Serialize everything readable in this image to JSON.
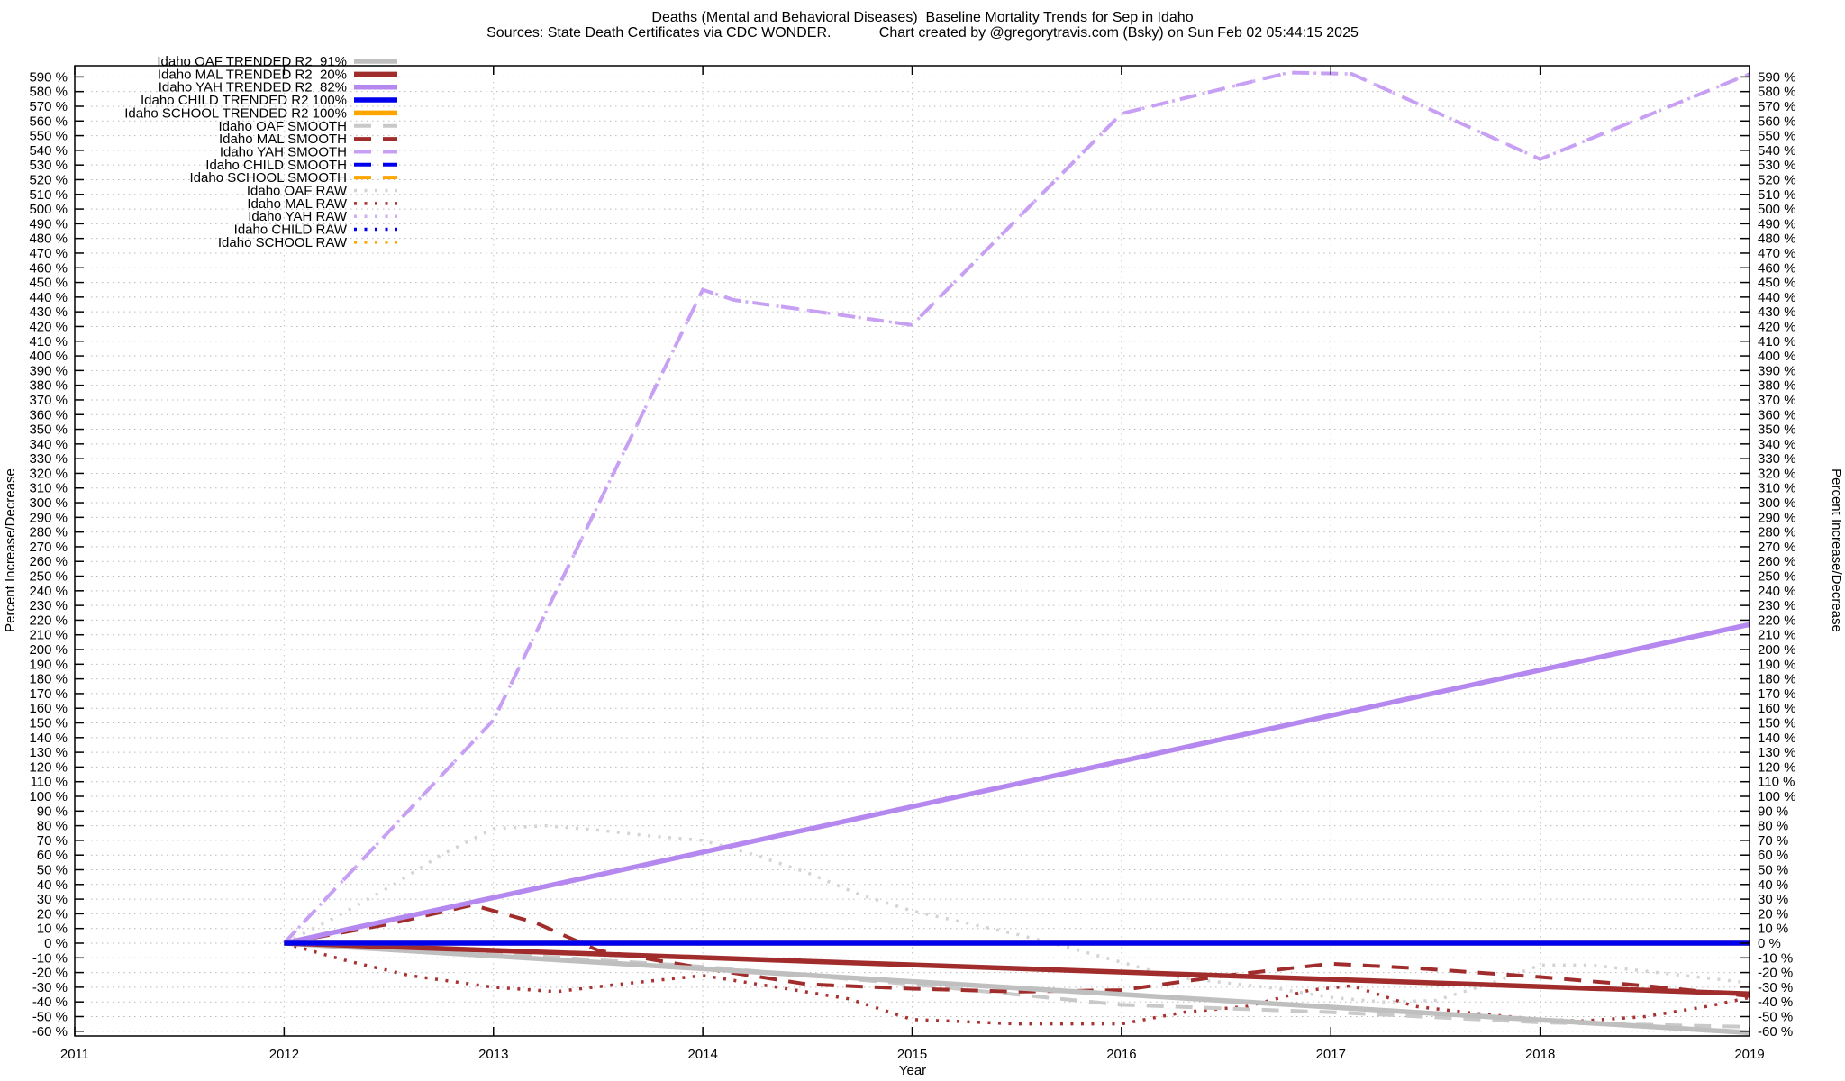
{
  "header": {
    "title": "Deaths (Mental and Behavioral Diseases)  Baseline Mortality Trends for Sep in Idaho",
    "subtitle": "Sources: State Death Certificates via CDC WONDER.            Chart created by @gregorytravis.com (Bsky) on Sun Feb 02 05:44:15 2025"
  },
  "chart_data": {
    "type": "line",
    "title": "Deaths (Mental and Behavioral Diseases)  Baseline Mortality Trends for Sep in Idaho",
    "xlabel": "Year",
    "ylabel_left": "Percent Increase/Decrease",
    "ylabel_right": "Percent Increase/Decrease",
    "x_range": [
      2011,
      2019
    ],
    "y_range": [
      -63.2,
      597.6
    ],
    "y_tick_min": -60,
    "y_tick_max": 590,
    "y_tick_step": 10,
    "y_tick_suffix": " %",
    "x_ticks": [
      2011,
      2012,
      2013,
      2014,
      2015,
      2016,
      2017,
      2018,
      2019
    ],
    "grid": true,
    "legend_position": "top-left-inside",
    "draw_order": [
      10,
      11,
      12,
      14,
      13,
      5,
      6,
      7,
      9,
      8,
      0,
      1,
      2,
      4,
      3
    ],
    "series": [
      {
        "label": "Idaho OAF TRENDED R2  91%",
        "r2_percent": 91,
        "color": "#bfbfbf",
        "style": "solid",
        "points": [
          [
            2012,
            0
          ],
          [
            2019,
            -61
          ]
        ]
      },
      {
        "label": "Idaho MAL TRENDED R2  20%",
        "r2_percent": 20,
        "color": "#a02c2c",
        "style": "solid",
        "points": [
          [
            2012,
            0
          ],
          [
            2019,
            -34.5
          ]
        ]
      },
      {
        "label": "Idaho YAH TRENDED R2  82%",
        "r2_percent": 82,
        "color": "#b588ef",
        "style": "solid",
        "points": [
          [
            2012,
            0
          ],
          [
            2019,
            217
          ]
        ]
      },
      {
        "label": "Idaho CHILD TRENDED R2 100%",
        "r2_percent": 100,
        "color": "#0000ee",
        "style": "solid",
        "points": [
          [
            2012,
            0
          ],
          [
            2019,
            0
          ]
        ]
      },
      {
        "label": "Idaho SCHOOL TRENDED R2 100%",
        "r2_percent": 100,
        "color": "#ffa500",
        "style": "solid",
        "points": [
          [
            2012,
            0
          ],
          [
            2019,
            0
          ]
        ]
      },
      {
        "label": "Idaho OAF SMOOTH",
        "color": "#c9c9c9",
        "style": "dashed",
        "points": [
          [
            2012,
            0
          ],
          [
            2013,
            -7
          ],
          [
            2014,
            -16
          ],
          [
            2015,
            -28
          ],
          [
            2016,
            -42
          ],
          [
            2017,
            -47
          ],
          [
            2018,
            -54
          ],
          [
            2019,
            -57
          ]
        ]
      },
      {
        "label": "Idaho MAL SMOOTH",
        "color": "#a02c2c",
        "style": "dashed",
        "points": [
          [
            2012,
            0
          ],
          [
            2012.5,
            13
          ],
          [
            2012.9,
            26
          ],
          [
            2013.2,
            14
          ],
          [
            2013.5,
            -5
          ],
          [
            2014,
            -17
          ],
          [
            2014.5,
            -28
          ],
          [
            2015,
            -31
          ],
          [
            2015.5,
            -33
          ],
          [
            2016,
            -32
          ],
          [
            2016.5,
            -22
          ],
          [
            2017,
            -14
          ],
          [
            2017.4,
            -17
          ],
          [
            2018,
            -23
          ],
          [
            2018.5,
            -29
          ],
          [
            2019,
            -36
          ]
        ]
      },
      {
        "label": "Idaho YAH SMOOTH",
        "color": "#c7a0f4",
        "style": "dashed",
        "points": [
          [
            2012,
            0
          ],
          [
            2013,
            152
          ],
          [
            2014,
            445
          ],
          [
            2014.15,
            438
          ],
          [
            2015,
            421
          ],
          [
            2016,
            565
          ],
          [
            2016.8,
            593
          ],
          [
            2017.1,
            592
          ],
          [
            2018,
            534
          ],
          [
            2019,
            592
          ]
        ]
      },
      {
        "label": "Idaho CHILD SMOOTH",
        "color": "#0000ee",
        "style": "dashed",
        "points": [
          [
            2012,
            0
          ],
          [
            2019,
            0
          ]
        ]
      },
      {
        "label": "Idaho SCHOOL SMOOTH",
        "color": "#ffa500",
        "style": "dashed",
        "points": [
          [
            2012,
            0
          ],
          [
            2019,
            0
          ]
        ]
      },
      {
        "label": "Idaho OAF RAW",
        "color": "#d4d4d4",
        "style": "dotted",
        "points": [
          [
            2012,
            0
          ],
          [
            2012.25,
            18
          ],
          [
            2012.5,
            38
          ],
          [
            2012.75,
            60
          ],
          [
            2013,
            78
          ],
          [
            2013.25,
            80
          ],
          [
            2013.5,
            77
          ],
          [
            2013.75,
            73
          ],
          [
            2014,
            70
          ],
          [
            2014.25,
            60
          ],
          [
            2014.5,
            48
          ],
          [
            2014.75,
            33
          ],
          [
            2015,
            22
          ],
          [
            2015.25,
            14
          ],
          [
            2015.5,
            6
          ],
          [
            2015.75,
            -3
          ],
          [
            2016,
            -13
          ],
          [
            2016.25,
            -23
          ],
          [
            2016.5,
            -27
          ],
          [
            2016.75,
            -31
          ],
          [
            2017,
            -37
          ],
          [
            2017.25,
            -40
          ],
          [
            2017.5,
            -39
          ],
          [
            2017.75,
            -28
          ],
          [
            2018,
            -15
          ],
          [
            2018.25,
            -15
          ],
          [
            2018.5,
            -19
          ],
          [
            2018.75,
            -23
          ],
          [
            2019,
            -27
          ]
        ]
      },
      {
        "label": "Idaho MAL RAW",
        "color": "#a83232",
        "style": "dotted",
        "points": [
          [
            2012,
            0
          ],
          [
            2012.3,
            -12
          ],
          [
            2012.6,
            -22
          ],
          [
            2013,
            -30
          ],
          [
            2013.3,
            -33
          ],
          [
            2013.6,
            -28
          ],
          [
            2014,
            -22
          ],
          [
            2014.4,
            -31
          ],
          [
            2014.7,
            -38
          ],
          [
            2015,
            -52
          ],
          [
            2015.5,
            -55
          ],
          [
            2016,
            -55
          ],
          [
            2016.3,
            -47
          ],
          [
            2016.6,
            -43
          ],
          [
            2016.9,
            -32
          ],
          [
            2017.1,
            -29
          ],
          [
            2017.4,
            -43
          ],
          [
            2017.7,
            -48
          ],
          [
            2018,
            -52
          ],
          [
            2018.2,
            -53
          ],
          [
            2018.5,
            -50
          ],
          [
            2018.8,
            -43
          ],
          [
            2019,
            -37
          ]
        ]
      },
      {
        "label": "Idaho YAH RAW",
        "color": "#cfaef6",
        "style": "dotted",
        "points": [
          [
            2012,
            0
          ],
          [
            2013,
            152
          ],
          [
            2014,
            445
          ],
          [
            2014.15,
            438
          ],
          [
            2015,
            421
          ],
          [
            2016,
            565
          ],
          [
            2016.8,
            593
          ],
          [
            2017.1,
            592
          ],
          [
            2018,
            534
          ],
          [
            2019,
            592
          ]
        ]
      },
      {
        "label": "Idaho CHILD RAW",
        "color": "#0000ee",
        "style": "dotted",
        "points": [
          [
            2012,
            0
          ],
          [
            2019,
            0
          ]
        ]
      },
      {
        "label": "Idaho SCHOOL RAW",
        "color": "#ffa500",
        "style": "dotted",
        "points": [
          [
            2012,
            0
          ],
          [
            2019,
            0
          ]
        ]
      }
    ]
  }
}
